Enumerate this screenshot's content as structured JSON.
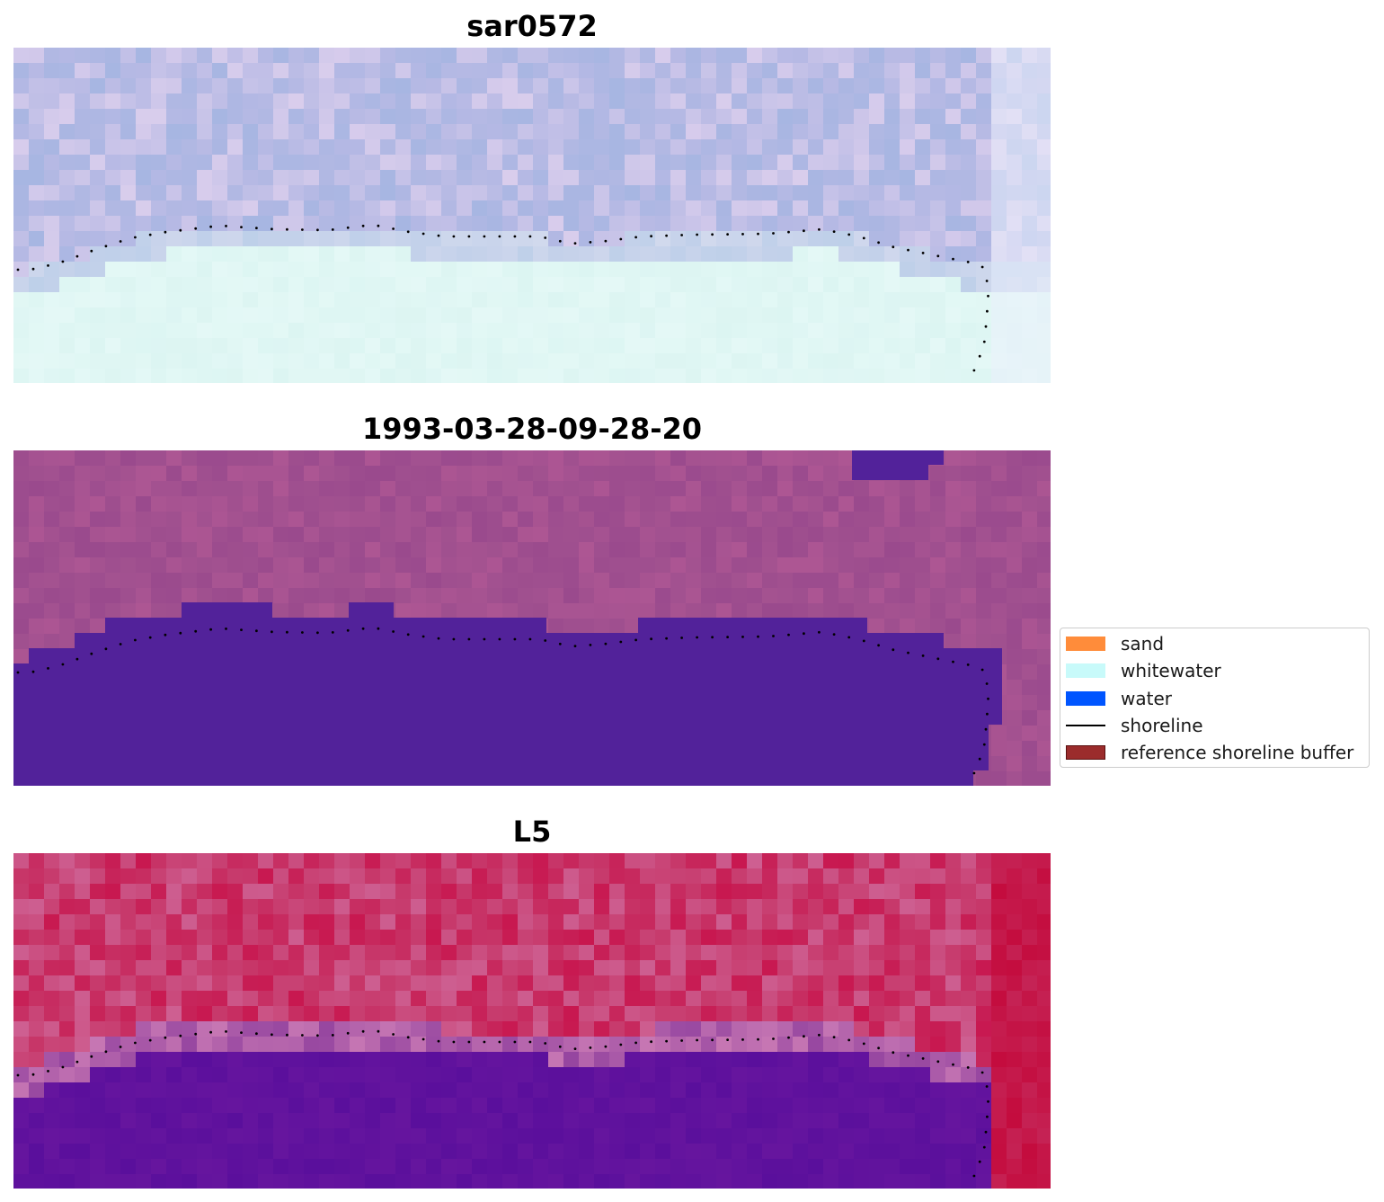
{
  "panels": [
    {
      "id": "sar",
      "title": "sar0572",
      "kind": "rgb-light"
    },
    {
      "id": "class",
      "title": "1993-03-28-09-28-20",
      "kind": "classified"
    },
    {
      "id": "l5",
      "title": "L5",
      "kind": "index-red"
    }
  ],
  "legend": {
    "items": [
      {
        "label": "sand",
        "color": "#ff8c3a",
        "type": "patch"
      },
      {
        "label": "whitewater",
        "color": "#c8fafa",
        "type": "patch"
      },
      {
        "label": "water",
        "color": "#0055ff",
        "type": "patch"
      },
      {
        "label": "shoreline",
        "color": "#000000",
        "type": "line"
      },
      {
        "label": "reference shoreline buffer",
        "color": "#9b2c2c",
        "type": "patch"
      }
    ]
  },
  "colors": {
    "water_class": "#52229a",
    "background_class": "#a0508f",
    "sar_top": "#b6b9e4",
    "sar_bottom": "#dcf5f2",
    "l5_land": "#c73a6c",
    "l5_water": "#5a0f9c"
  }
}
